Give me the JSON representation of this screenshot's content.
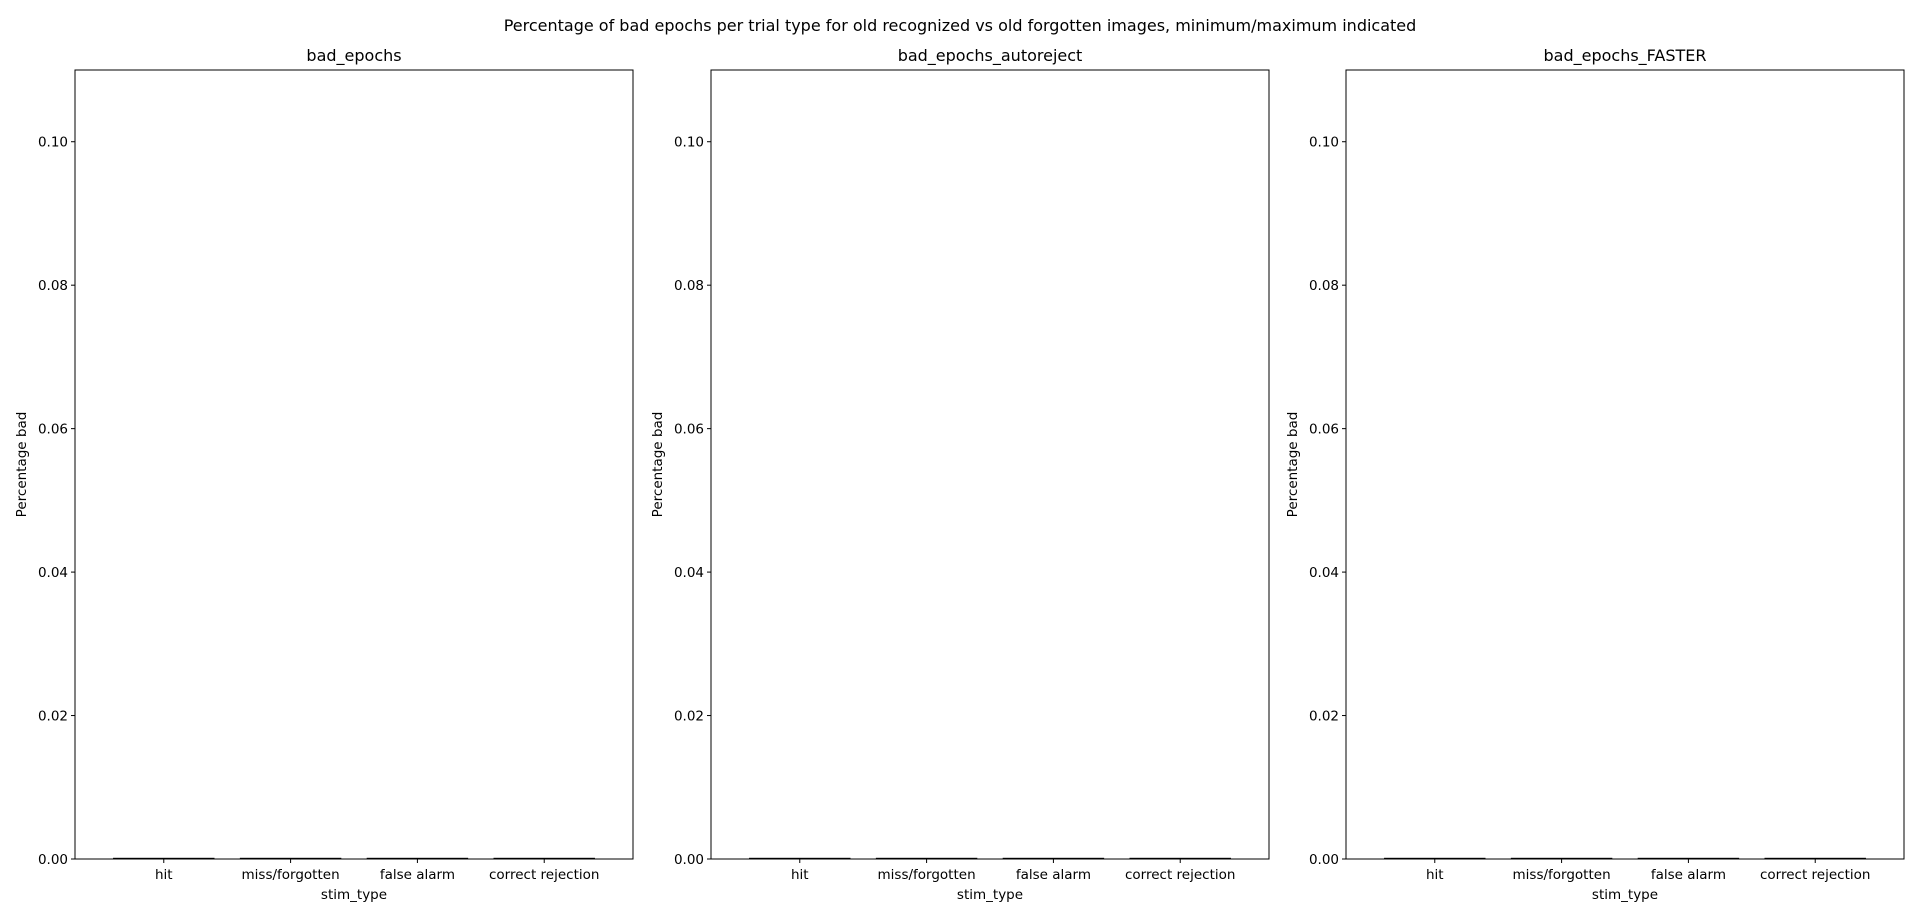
{
  "chart_data": {
    "type": "bar",
    "title": "Percentage of bad epochs per trial type for old recognized vs old forgotten images, minimum/maximum indicated",
    "panels": [
      {
        "title": "bad_epochs",
        "xlabel": "stim_type",
        "ylabel": "Percentage bad",
        "categories": [
          "hit",
          "miss/forgotten",
          "false alarm",
          "correct rejection"
        ],
        "values": [
          0,
          0,
          0,
          0
        ],
        "min": [
          0,
          0,
          0,
          0
        ],
        "max": [
          0,
          0,
          0,
          0
        ],
        "ylim": [
          0,
          0.11
        ],
        "yticks": [
          0,
          0.02,
          0.04,
          0.06,
          0.08,
          0.1
        ],
        "ytick_labels": [
          "0.00",
          "0.02",
          "0.04",
          "0.06",
          "0.08",
          "0.10"
        ]
      },
      {
        "title": "bad_epochs_autoreject",
        "xlabel": "stim_type",
        "ylabel": "Percentage bad",
        "categories": [
          "hit",
          "miss/forgotten",
          "false alarm",
          "correct rejection"
        ],
        "values": [
          0,
          0,
          0,
          0
        ],
        "min": [
          0,
          0,
          0,
          0
        ],
        "max": [
          0,
          0,
          0,
          0
        ],
        "ylim": [
          0,
          0.11
        ],
        "yticks": [
          0,
          0.02,
          0.04,
          0.06,
          0.08,
          0.1
        ],
        "ytick_labels": [
          "0.00",
          "0.02",
          "0.04",
          "0.06",
          "0.08",
          "0.10"
        ]
      },
      {
        "title": "bad_epochs_FASTER",
        "xlabel": "stim_type",
        "ylabel": "Percentage bad",
        "categories": [
          "hit",
          "miss/forgotten",
          "false alarm",
          "correct rejection"
        ],
        "values": [
          0,
          0,
          0,
          0
        ],
        "min": [
          0,
          0,
          0,
          0
        ],
        "max": [
          0,
          0,
          0,
          0
        ],
        "ylim": [
          0,
          0.11
        ],
        "yticks": [
          0,
          0.02,
          0.04,
          0.06,
          0.08,
          0.1
        ],
        "ytick_labels": [
          "0.00",
          "0.02",
          "0.04",
          "0.06",
          "0.08",
          "0.10"
        ]
      }
    ],
    "grid": false,
    "colors": {
      "axes": "#000000",
      "bar": "#000000",
      "background": "#ffffff"
    }
  }
}
